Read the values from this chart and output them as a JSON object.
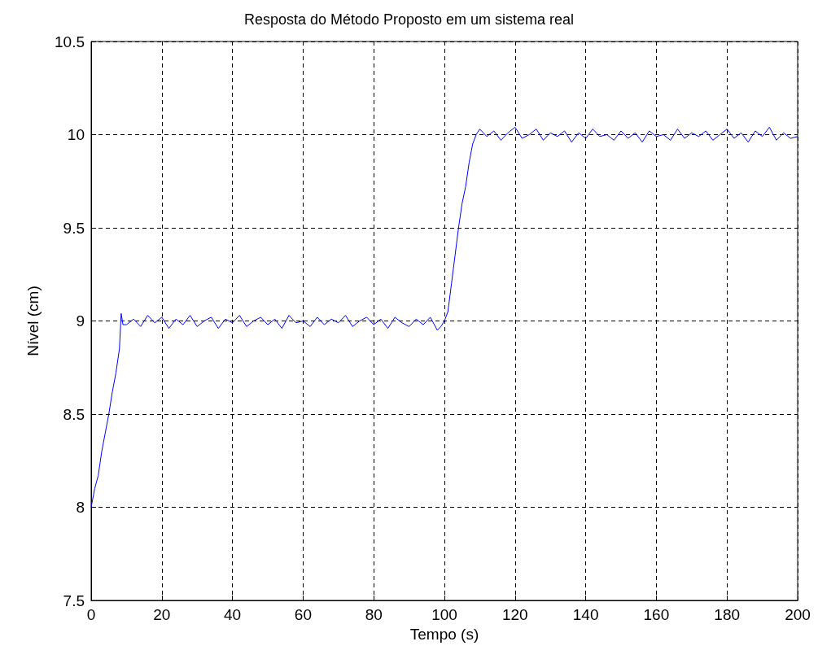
{
  "chart_data": {
    "type": "line",
    "title": "Resposta do Método Proposto em um sistema real",
    "xlabel": "Tempo (s)",
    "ylabel": "Nível (cm)",
    "xlim": [
      0,
      200
    ],
    "xticks": [
      0,
      20,
      40,
      60,
      80,
      100,
      120,
      140,
      160,
      180,
      200
    ],
    "ylim": [
      7.5,
      10.5
    ],
    "yticks": [
      7.5,
      8,
      8.5,
      9,
      9.5,
      10,
      10.5
    ],
    "grid": true,
    "line_style": "solid",
    "series": [
      {
        "color": "#0000ff",
        "x": [
          0,
          1,
          2,
          3,
          4,
          5,
          6,
          7,
          8,
          8.5,
          9,
          10,
          12,
          14,
          16,
          18,
          20,
          22,
          24,
          26,
          28,
          30,
          32,
          34,
          36,
          38,
          40,
          42,
          44,
          46,
          48,
          50,
          52,
          54,
          56,
          58,
          60,
          62,
          64,
          66,
          68,
          70,
          72,
          74,
          76,
          78,
          80,
          82,
          84,
          86,
          88,
          90,
          92,
          94,
          96,
          98,
          99,
          100,
          101,
          102,
          103,
          104,
          105,
          106,
          107,
          108,
          109,
          110,
          112,
          114,
          116,
          118,
          120,
          122,
          124,
          126,
          128,
          130,
          132,
          134,
          136,
          138,
          140,
          142,
          144,
          146,
          148,
          150,
          152,
          154,
          156,
          158,
          160,
          162,
          164,
          166,
          168,
          170,
          172,
          174,
          176,
          178,
          180,
          182,
          184,
          186,
          188,
          190,
          192,
          194,
          196,
          198,
          200
        ],
        "values": [
          8.0,
          8.1,
          8.17,
          8.3,
          8.4,
          8.5,
          8.62,
          8.72,
          8.85,
          9.04,
          8.98,
          8.98,
          9.01,
          8.97,
          9.03,
          8.99,
          9.02,
          8.96,
          9.01,
          8.98,
          9.03,
          8.97,
          9.0,
          9.02,
          8.96,
          9.01,
          8.99,
          9.03,
          8.97,
          9.0,
          9.02,
          8.98,
          9.01,
          8.96,
          9.03,
          8.99,
          9.0,
          8.97,
          9.02,
          8.98,
          9.01,
          8.99,
          9.03,
          8.97,
          9.0,
          9.02,
          8.98,
          9.01,
          8.96,
          9.02,
          8.99,
          8.97,
          9.01,
          8.98,
          9.02,
          8.95,
          8.97,
          9.0,
          9.05,
          9.2,
          9.35,
          9.5,
          9.63,
          9.72,
          9.85,
          9.95,
          10.0,
          10.03,
          9.99,
          10.02,
          9.97,
          10.01,
          10.04,
          9.98,
          10.0,
          10.03,
          9.97,
          10.01,
          9.99,
          10.02,
          9.96,
          10.01,
          9.98,
          10.03,
          9.99,
          10.0,
          9.97,
          10.02,
          9.98,
          10.01,
          9.96,
          10.02,
          9.99,
          10.0,
          9.97,
          10.03,
          9.98,
          10.01,
          9.99,
          10.02,
          9.97,
          10.0,
          10.03,
          9.98,
          10.01,
          9.96,
          10.02,
          9.99,
          10.04,
          9.97,
          10.01,
          9.98,
          9.99
        ]
      }
    ]
  }
}
